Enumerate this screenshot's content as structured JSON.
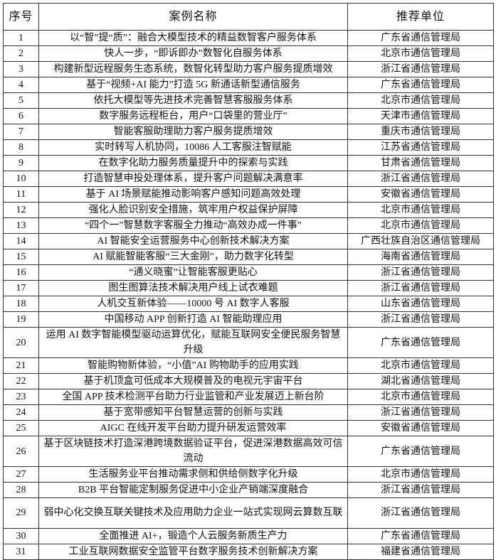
{
  "table": {
    "headers": [
      "序号",
      "案例名称",
      "推荐单位"
    ],
    "rows": [
      {
        "no": "1",
        "name": "以“智”提“质”：融合大模型技术的精益数智客户服务体系",
        "unit": "广东省通信管理局"
      },
      {
        "no": "2",
        "name": "快人一步，“即诉即办”数智化自服务体系",
        "unit": "北京市通信管理局"
      },
      {
        "no": "3",
        "name": "构建新型远程服务生态系统，数智化转型助力客户服务提质增效",
        "unit": "浙江省通信管理局"
      },
      {
        "no": "4",
        "name": "基于“视频+AI 能力”打造 5G 新通话新型通信服务",
        "unit": "广东省通信管理局"
      },
      {
        "no": "5",
        "name": "依托大模型等先进技术完善智慧客服服务体系",
        "unit": "北京市通信管理局"
      },
      {
        "no": "6",
        "name": "数字服务远程柜台，用户“口袋里的营业厅”",
        "unit": "天津市通信管理局"
      },
      {
        "no": "7",
        "name": "智能客服助理助力客户服务提质增效",
        "unit": "重庆市通信管理局"
      },
      {
        "no": "8",
        "name": "实时转写人机协同，10086 人工客服注智赋能",
        "unit": "江苏省通信管理局"
      },
      {
        "no": "9",
        "name": "在数字化助力服务质量提升中的探索与实践",
        "unit": "甘肃省通信管理局"
      },
      {
        "no": "10",
        "name": "打造智慧申投处理体系，提升客户问题解决满意率",
        "unit": "浙江省通信管理局"
      },
      {
        "no": "11",
        "name": "基于 AI 场景赋能推动影响客户感知问题高效处理",
        "unit": "安徽省通信管理局"
      },
      {
        "no": "12",
        "name": "强化人脸识别安全措施，筑牢用户权益保护屏障",
        "unit": "北京市通信管理局"
      },
      {
        "no": "13",
        "name": "“四个一”智慧数字客服全力推动“高效办成一件事”",
        "unit": "北京市通信管理局"
      },
      {
        "no": "14",
        "name": "AI 智能安全运营服务中心创新技术解决方案",
        "unit": "广西壮族自治区通信管理局"
      },
      {
        "no": "15",
        "name": "AI 赋能智能客服“三大金刚”，助力数字化转型",
        "unit": "海南省通信管理局"
      },
      {
        "no": "16",
        "name": "“通义晓蜜”让智能客服更贴心",
        "unit": "浙江省通信管理局"
      },
      {
        "no": "17",
        "name": "图生图算法技术解决用户线上试衣难题",
        "unit": "浙江省通信管理局"
      },
      {
        "no": "18",
        "name": "人机交互新体验——10000 号 AI 数字人客服",
        "unit": "山东省通信管理局"
      },
      {
        "no": "19",
        "name": "中国移动 APP 创新打造 AI 智能助理应用",
        "unit": "浙江省通信管理局"
      },
      {
        "no": "20",
        "name": "运用 AI 数字智能模型驱动运算优化，赋能互联网安全便民服务智慧升级",
        "unit": "广东省通信管理局"
      },
      {
        "no": "21",
        "name": "智能购物新体验，“小值”AI 购物助手的应用实践",
        "unit": "北京市通信管理局"
      },
      {
        "no": "22",
        "name": "基于机顶盒可低成本大规模普及的电视元宇宙平台",
        "unit": "湖北省通信管理局"
      },
      {
        "no": "23",
        "name": "全国 APP 技术检测平台助力行业监管和产业发展迈上新台阶",
        "unit": "北京市通信管理局"
      },
      {
        "no": "24",
        "name": "基于宽带感知平台智慧运营的创新与实践",
        "unit": "浙江省通信管理局"
      },
      {
        "no": "25",
        "name": "AIGC 在线开发平台助力提升研发运营效率",
        "unit": "安徽省通信管理局"
      },
      {
        "no": "26",
        "name": "基于区块链技术打造深港跨境数据验证平台，促进深港数据高效可信流动",
        "unit": "广东省通信管理局"
      },
      {
        "no": "27",
        "name": "生活服务业平台推动需求侧和供给侧数字化升级",
        "unit": "北京市通信管理局"
      },
      {
        "no": "28",
        "name": "B2B 平台智能定制服务促进中小企业产销端深度融合",
        "unit": "浙江省通信管理局"
      },
      {
        "no": "29",
        "name": "弱中心化交换互联关键技术及应用助力企业一站式实现网云算数互联",
        "unit": "浙江省通信管理局"
      },
      {
        "no": "30",
        "name": "全面推进 AI+，锻造个人云服务新质生产力",
        "unit": "广东省通信管理局"
      },
      {
        "no": "31",
        "name": "工业互联网数据安全监管平台数字服务技术创新解决方案",
        "unit": "福建省通信管理局"
      }
    ]
  }
}
